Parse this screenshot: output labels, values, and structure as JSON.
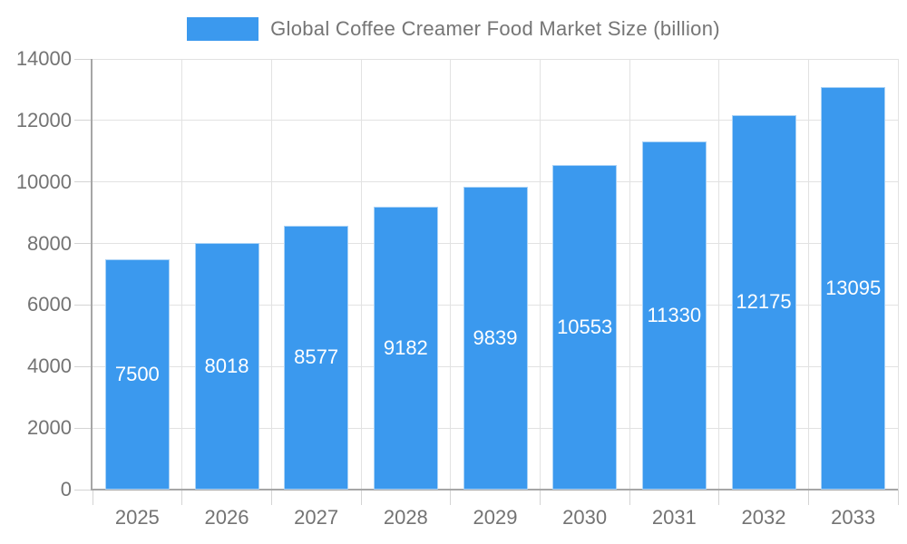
{
  "legend": {
    "label": "Global Coffee Creamer Food Market Size (billion)"
  },
  "chart_data": {
    "type": "bar",
    "title": "Global Coffee Creamer Food Market Size (billion)",
    "categories": [
      "2025",
      "2026",
      "2027",
      "2028",
      "2029",
      "2030",
      "2031",
      "2032",
      "2033"
    ],
    "values": [
      7500,
      8018,
      8577,
      9182,
      9839,
      10553,
      11330,
      12175,
      13095
    ],
    "xlabel": "",
    "ylabel": "",
    "ylim": [
      0,
      14000
    ],
    "ytick_step": 2000,
    "yticks": [
      0,
      2000,
      4000,
      6000,
      8000,
      10000,
      12000,
      14000
    ],
    "grid": true,
    "legend_position": "top-center",
    "bar_label_position": "center-inside",
    "colors": {
      "bar": "#3b99ee",
      "bar_border": "#a9d2f6",
      "bar_label": "#ffffff",
      "axis_text": "#737373",
      "title_text": "#757575",
      "grid_line": "#e2e2e2",
      "axis_line": "#a6a6a6",
      "tick_line": "#d4d4d4",
      "background": "#ffffff"
    }
  }
}
